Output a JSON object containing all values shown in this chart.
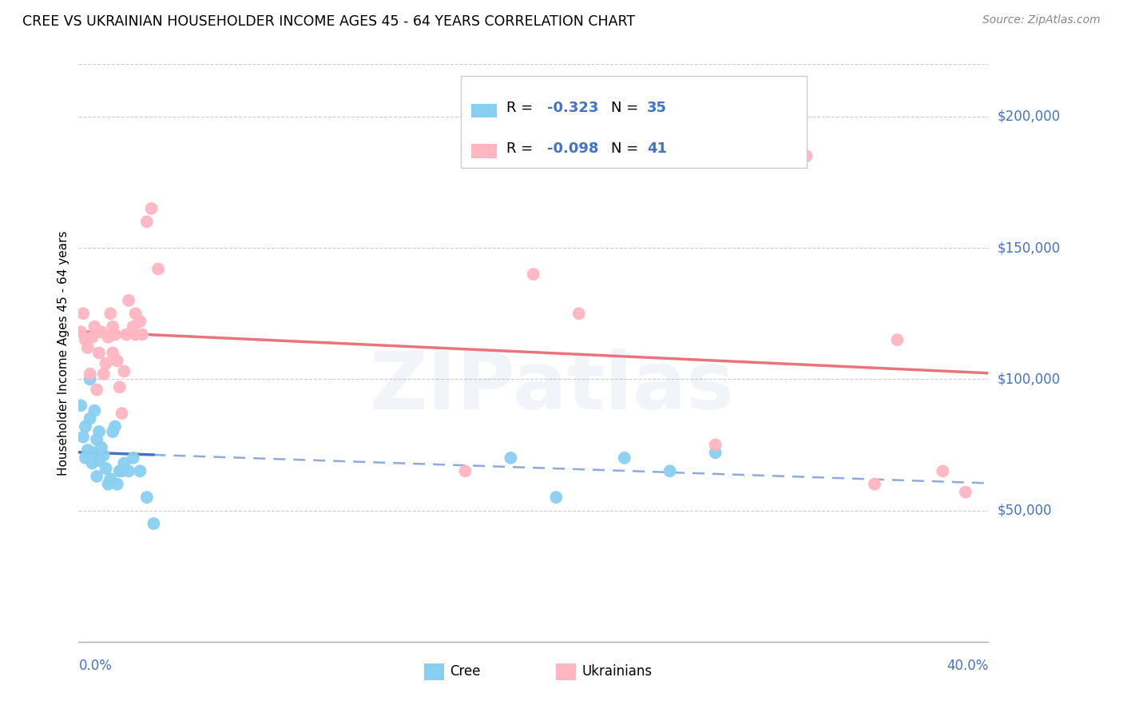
{
  "title": "CREE VS UKRAINIAN HOUSEHOLDER INCOME AGES 45 - 64 YEARS CORRELATION CHART",
  "source": "Source: ZipAtlas.com",
  "ylabel": "Householder Income Ages 45 - 64 years",
  "xlim": [
    0.0,
    0.4
  ],
  "ylim": [
    0,
    220000
  ],
  "yticks": [
    50000,
    100000,
    150000,
    200000
  ],
  "ytick_labels": [
    "$50,000",
    "$100,000",
    "$150,000",
    "$200,000"
  ],
  "cree_color": "#89CFF0",
  "ukr_color": "#FFB6C1",
  "cree_line_color": "#4472c4",
  "ukr_line_color": "#E8747C",
  "legend_text_color": "#4472c4",
  "cree_R": -0.323,
  "cree_N": 35,
  "ukr_R": -0.098,
  "ukr_N": 41,
  "watermark": "ZIPatlas",
  "cree_scatter_x": [
    0.001,
    0.002,
    0.003,
    0.003,
    0.004,
    0.005,
    0.005,
    0.006,
    0.007,
    0.007,
    0.008,
    0.008,
    0.009,
    0.009,
    0.01,
    0.011,
    0.012,
    0.013,
    0.014,
    0.015,
    0.016,
    0.017,
    0.018,
    0.019,
    0.02,
    0.022,
    0.024,
    0.027,
    0.03,
    0.033,
    0.19,
    0.21,
    0.24,
    0.26,
    0.28
  ],
  "cree_scatter_y": [
    90000,
    78000,
    70000,
    82000,
    73000,
    85000,
    100000,
    68000,
    88000,
    72000,
    77000,
    63000,
    80000,
    69000,
    74000,
    71000,
    66000,
    60000,
    62000,
    80000,
    82000,
    60000,
    65000,
    65000,
    68000,
    65000,
    70000,
    65000,
    55000,
    45000,
    70000,
    55000,
    70000,
    65000,
    72000
  ],
  "ukr_scatter_x": [
    0.001,
    0.002,
    0.003,
    0.004,
    0.005,
    0.006,
    0.007,
    0.008,
    0.009,
    0.01,
    0.011,
    0.012,
    0.013,
    0.014,
    0.015,
    0.015,
    0.016,
    0.017,
    0.018,
    0.019,
    0.02,
    0.021,
    0.022,
    0.024,
    0.025,
    0.025,
    0.027,
    0.028,
    0.03,
    0.032,
    0.035,
    0.2,
    0.22,
    0.28,
    0.3,
    0.32,
    0.35,
    0.36,
    0.38,
    0.39,
    0.17
  ],
  "ukr_scatter_y": [
    118000,
    125000,
    115000,
    112000,
    102000,
    116000,
    120000,
    96000,
    110000,
    118000,
    102000,
    106000,
    116000,
    125000,
    120000,
    110000,
    117000,
    107000,
    97000,
    87000,
    103000,
    117000,
    130000,
    120000,
    117000,
    125000,
    122000,
    117000,
    160000,
    165000,
    142000,
    140000,
    125000,
    75000,
    185000,
    185000,
    60000,
    115000,
    65000,
    57000,
    65000
  ]
}
